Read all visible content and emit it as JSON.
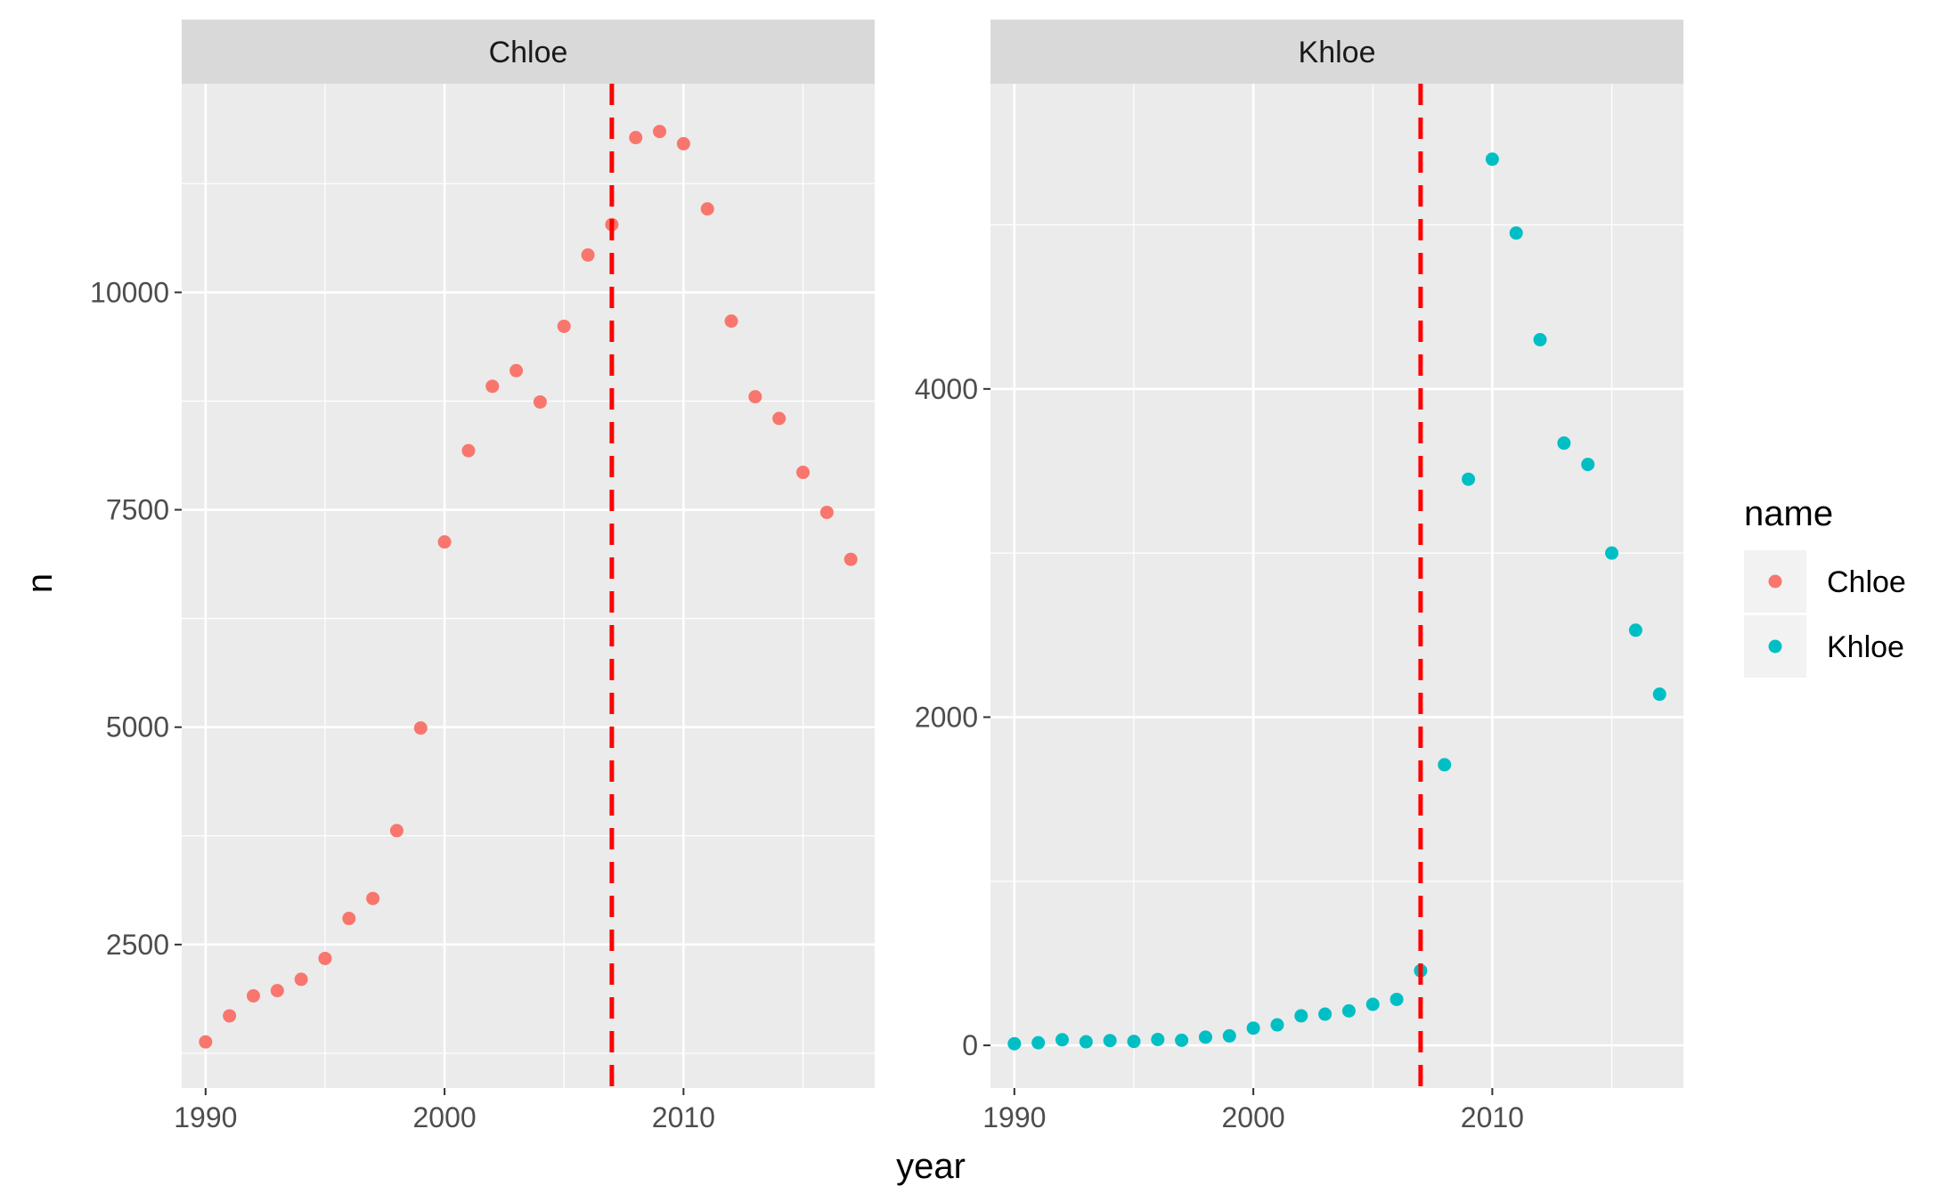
{
  "chart_data": {
    "type": "scatter",
    "facet_strip_color": "#d9d9d9",
    "panel_background": "#ebebeb",
    "grid": true,
    "x": [
      1990,
      1991,
      1992,
      1993,
      1994,
      1995,
      1996,
      1997,
      1998,
      1999,
      2000,
      2001,
      2002,
      2003,
      2004,
      2005,
      2006,
      2007,
      2008,
      2009,
      2010,
      2011,
      2012,
      2013,
      2014,
      2015,
      2016,
      2017
    ],
    "xlabel": "year",
    "ylabel": "n",
    "x_ticks": [
      1990,
      2000,
      2010
    ],
    "xlim": [
      1989,
      2018
    ],
    "reference_line": {
      "x": 2007,
      "color": "#ff0000",
      "style": "dashed"
    },
    "legend": {
      "title": "name",
      "placement": "right",
      "entries": [
        {
          "label": "Chloe",
          "color": "#f8766d"
        },
        {
          "label": "Khloe",
          "color": "#00bfc4"
        }
      ]
    },
    "panels": [
      {
        "strip": "Chloe",
        "color": "#f8766d",
        "ylim": [
          850,
          12400
        ],
        "y_ticks": [
          2500,
          5000,
          7500,
          10000
        ],
        "y_tick_labels": [
          "2500",
          "5000",
          "7500",
          "10000"
        ],
        "values": [
          1380,
          1680,
          1910,
          1970,
          2100,
          2340,
          2800,
          3030,
          3810,
          4990,
          7130,
          8180,
          8920,
          9100,
          8740,
          9610,
          10430,
          10780,
          11780,
          11850,
          11710,
          10960,
          9670,
          8800,
          8550,
          7930,
          7470,
          6930
        ]
      },
      {
        "strip": "Khloe",
        "color": "#00bfc4",
        "ylim": [
          -260,
          5860
        ],
        "y_ticks": [
          0,
          2000,
          4000
        ],
        "y_tick_labels": [
          "0",
          "2000",
          "4000"
        ],
        "values": [
          10,
          16,
          34,
          22,
          29,
          24,
          36,
          31,
          50,
          58,
          105,
          125,
          180,
          190,
          210,
          250,
          280,
          455,
          1710,
          3450,
          5400,
          4950,
          4300,
          3670,
          3540,
          3000,
          2530,
          2140
        ]
      }
    ]
  }
}
